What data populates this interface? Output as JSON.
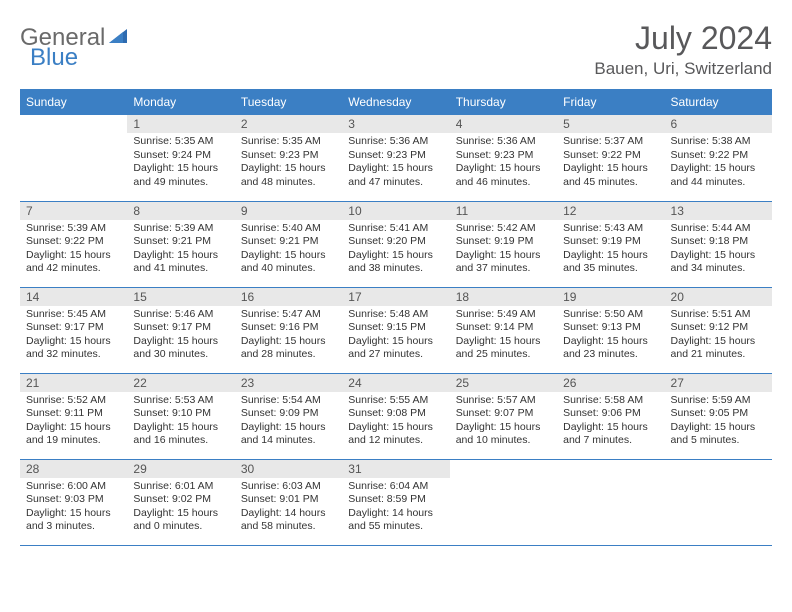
{
  "logo": {
    "part1": "General",
    "part2": "Blue"
  },
  "title": "July 2024",
  "location": "Bauen, Uri, Switzerland",
  "weekdays": [
    "Sunday",
    "Monday",
    "Tuesday",
    "Wednesday",
    "Thursday",
    "Friday",
    "Saturday"
  ],
  "colors": {
    "header_bg": "#3b7fc4",
    "header_text": "#ffffff",
    "daynum_bg": "#e8e8e8",
    "title_color": "#58585a",
    "border": "#3b7fc4"
  },
  "layout": {
    "columns": 7,
    "rows": 5,
    "start_day_index": 1,
    "days_in_month": 31
  },
  "days": [
    {
      "n": 1,
      "sunrise": "5:35 AM",
      "sunset": "9:24 PM",
      "daylight": "15 hours and 49 minutes."
    },
    {
      "n": 2,
      "sunrise": "5:35 AM",
      "sunset": "9:23 PM",
      "daylight": "15 hours and 48 minutes."
    },
    {
      "n": 3,
      "sunrise": "5:36 AM",
      "sunset": "9:23 PM",
      "daylight": "15 hours and 47 minutes."
    },
    {
      "n": 4,
      "sunrise": "5:36 AM",
      "sunset": "9:23 PM",
      "daylight": "15 hours and 46 minutes."
    },
    {
      "n": 5,
      "sunrise": "5:37 AM",
      "sunset": "9:22 PM",
      "daylight": "15 hours and 45 minutes."
    },
    {
      "n": 6,
      "sunrise": "5:38 AM",
      "sunset": "9:22 PM",
      "daylight": "15 hours and 44 minutes."
    },
    {
      "n": 7,
      "sunrise": "5:39 AM",
      "sunset": "9:22 PM",
      "daylight": "15 hours and 42 minutes."
    },
    {
      "n": 8,
      "sunrise": "5:39 AM",
      "sunset": "9:21 PM",
      "daylight": "15 hours and 41 minutes."
    },
    {
      "n": 9,
      "sunrise": "5:40 AM",
      "sunset": "9:21 PM",
      "daylight": "15 hours and 40 minutes."
    },
    {
      "n": 10,
      "sunrise": "5:41 AM",
      "sunset": "9:20 PM",
      "daylight": "15 hours and 38 minutes."
    },
    {
      "n": 11,
      "sunrise": "5:42 AM",
      "sunset": "9:19 PM",
      "daylight": "15 hours and 37 minutes."
    },
    {
      "n": 12,
      "sunrise": "5:43 AM",
      "sunset": "9:19 PM",
      "daylight": "15 hours and 35 minutes."
    },
    {
      "n": 13,
      "sunrise": "5:44 AM",
      "sunset": "9:18 PM",
      "daylight": "15 hours and 34 minutes."
    },
    {
      "n": 14,
      "sunrise": "5:45 AM",
      "sunset": "9:17 PM",
      "daylight": "15 hours and 32 minutes."
    },
    {
      "n": 15,
      "sunrise": "5:46 AM",
      "sunset": "9:17 PM",
      "daylight": "15 hours and 30 minutes."
    },
    {
      "n": 16,
      "sunrise": "5:47 AM",
      "sunset": "9:16 PM",
      "daylight": "15 hours and 28 minutes."
    },
    {
      "n": 17,
      "sunrise": "5:48 AM",
      "sunset": "9:15 PM",
      "daylight": "15 hours and 27 minutes."
    },
    {
      "n": 18,
      "sunrise": "5:49 AM",
      "sunset": "9:14 PM",
      "daylight": "15 hours and 25 minutes."
    },
    {
      "n": 19,
      "sunrise": "5:50 AM",
      "sunset": "9:13 PM",
      "daylight": "15 hours and 23 minutes."
    },
    {
      "n": 20,
      "sunrise": "5:51 AM",
      "sunset": "9:12 PM",
      "daylight": "15 hours and 21 minutes."
    },
    {
      "n": 21,
      "sunrise": "5:52 AM",
      "sunset": "9:11 PM",
      "daylight": "15 hours and 19 minutes."
    },
    {
      "n": 22,
      "sunrise": "5:53 AM",
      "sunset": "9:10 PM",
      "daylight": "15 hours and 16 minutes."
    },
    {
      "n": 23,
      "sunrise": "5:54 AM",
      "sunset": "9:09 PM",
      "daylight": "15 hours and 14 minutes."
    },
    {
      "n": 24,
      "sunrise": "5:55 AM",
      "sunset": "9:08 PM",
      "daylight": "15 hours and 12 minutes."
    },
    {
      "n": 25,
      "sunrise": "5:57 AM",
      "sunset": "9:07 PM",
      "daylight": "15 hours and 10 minutes."
    },
    {
      "n": 26,
      "sunrise": "5:58 AM",
      "sunset": "9:06 PM",
      "daylight": "15 hours and 7 minutes."
    },
    {
      "n": 27,
      "sunrise": "5:59 AM",
      "sunset": "9:05 PM",
      "daylight": "15 hours and 5 minutes."
    },
    {
      "n": 28,
      "sunrise": "6:00 AM",
      "sunset": "9:03 PM",
      "daylight": "15 hours and 3 minutes."
    },
    {
      "n": 29,
      "sunrise": "6:01 AM",
      "sunset": "9:02 PM",
      "daylight": "15 hours and 0 minutes."
    },
    {
      "n": 30,
      "sunrise": "6:03 AM",
      "sunset": "9:01 PM",
      "daylight": "14 hours and 58 minutes."
    },
    {
      "n": 31,
      "sunrise": "6:04 AM",
      "sunset": "8:59 PM",
      "daylight": "14 hours and 55 minutes."
    }
  ],
  "labels": {
    "sunrise": "Sunrise:",
    "sunset": "Sunset:",
    "daylight": "Daylight:"
  }
}
